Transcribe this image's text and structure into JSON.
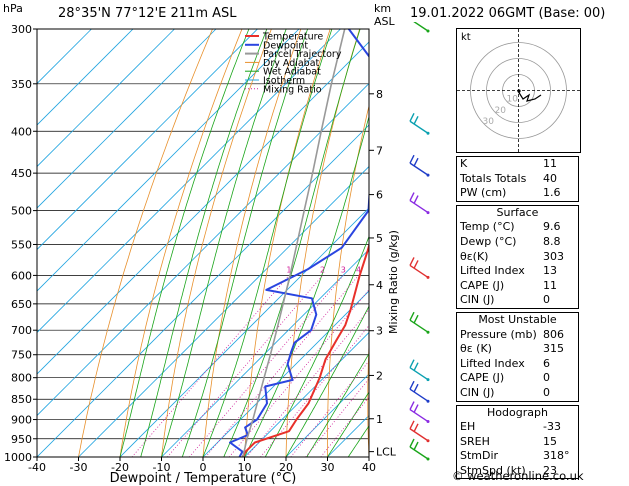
{
  "header": {
    "hpa_unit": "hPa",
    "location": "28°35'N  77°12'E  211m  ASL",
    "km_unit": "km",
    "asl_unit": "ASL",
    "datetime": "19.01.2022  06GMT  (Base: 00)"
  },
  "colors": {
    "temperature": "#e8302a",
    "dewpoint": "#2a45e0",
    "parcel": "#999999",
    "dry_adiabat": "#e8902c",
    "wet_adiabat": "#1aa51a",
    "isotherm": "#22a5e0",
    "mixing_ratio": "#d0209a"
  },
  "legend": [
    "Temperature",
    "Dewpoint",
    "Parcel Trajectory",
    "Dry Adiabat",
    "Wet Adiabat",
    "Isotherm",
    "Mixing Ratio"
  ],
  "chart_data": {
    "type": "line",
    "xlabel": "Dewpoint / Temperature (°C)",
    "ylabel": "hPa",
    "right_label": "Mixing Ratio (g/kg)",
    "xlim": [
      -40,
      40
    ],
    "ylim": [
      1000,
      300
    ],
    "x_ticks": [
      -40,
      -30,
      -20,
      -10,
      0,
      10,
      20,
      30,
      40
    ],
    "pressure_ticks": [
      300,
      350,
      400,
      450,
      500,
      550,
      600,
      650,
      700,
      750,
      800,
      850,
      900,
      950,
      1000
    ],
    "km_ticks": [
      {
        "label": "8",
        "p": 360
      },
      {
        "label": "7",
        "p": 422
      },
      {
        "label": "6",
        "p": 478
      },
      {
        "label": "5",
        "p": 540
      },
      {
        "label": "4",
        "p": 616
      },
      {
        "label": "3",
        "p": 701
      },
      {
        "label": "2",
        "p": 795
      },
      {
        "label": "1",
        "p": 898
      },
      {
        "label": "LCL",
        "p": 985
      }
    ],
    "mixing_ratio_labels": [
      "1",
      "2",
      "3",
      "4",
      "6",
      "8",
      "10",
      "16",
      "20",
      "25"
    ],
    "mixing_ratio_values": [
      1,
      2,
      3,
      4,
      6,
      8,
      10,
      16,
      20,
      25
    ],
    "series": [
      {
        "name": "Temperature",
        "points": [
          [
            1000,
            9.5
          ],
          [
            985,
            9.0
          ],
          [
            960,
            9.0
          ],
          [
            930,
            14.5
          ],
          [
            900,
            13.5
          ],
          [
            860,
            12.5
          ],
          [
            800,
            9.0
          ],
          [
            760,
            6.0
          ],
          [
            720,
            4.0
          ],
          [
            690,
            2.5
          ],
          [
            660,
            0.0
          ],
          [
            600,
            -6.0
          ],
          [
            560,
            -10.0
          ],
          [
            500,
            -17.0
          ],
          [
            450,
            -22.5
          ],
          [
            400,
            -29.5
          ],
          [
            365,
            -35.0
          ],
          [
            355,
            -38.5
          ],
          [
            340,
            -37.5
          ],
          [
            320,
            -38.0
          ],
          [
            300,
            -42.0
          ]
        ]
      },
      {
        "name": "Dewpoint",
        "points": [
          [
            1000,
            8.8
          ],
          [
            985,
            8.2
          ],
          [
            960,
            3.0
          ],
          [
            940,
            5.5
          ],
          [
            920,
            3.0
          ],
          [
            900,
            4.0
          ],
          [
            860,
            2.5
          ],
          [
            820,
            -2.0
          ],
          [
            805,
            3.0
          ],
          [
            770,
            -2.0
          ],
          [
            745,
            -4.0
          ],
          [
            725,
            -5.5
          ],
          [
            700,
            -4.5
          ],
          [
            670,
            -7.0
          ],
          [
            640,
            -12.0
          ],
          [
            625,
            -25.0
          ],
          [
            590,
            -20.0
          ],
          [
            555,
            -17.0
          ],
          [
            500,
            -19.5
          ],
          [
            450,
            -28.0
          ],
          [
            400,
            -37.0
          ],
          [
            350,
            -45.0
          ],
          [
            300,
            -68.0
          ]
        ]
      },
      {
        "name": "Parcel Trajectory",
        "points": [
          [
            1000,
            9.6
          ],
          [
            985,
            8.6
          ],
          [
            950,
            6.2
          ],
          [
            900,
            3.0
          ],
          [
            850,
            -0.6
          ],
          [
            800,
            -4.4
          ],
          [
            750,
            -8.4
          ],
          [
            700,
            -12.8
          ],
          [
            650,
            -17.6
          ],
          [
            600,
            -22.8
          ],
          [
            550,
            -28.6
          ],
          [
            500,
            -35.0
          ],
          [
            450,
            -42.0
          ],
          [
            400,
            -50.0
          ],
          [
            350,
            -59.0
          ],
          [
            300,
            -69.0
          ]
        ]
      }
    ]
  },
  "wind_barbs": {
    "colors": [
      "#1aa51a",
      "#0aa0b0",
      "#1e3cc8",
      "#8a2be2",
      "#e03030"
    ],
    "levels": [
      300,
      400,
      450,
      500,
      600,
      700,
      800,
      850,
      900,
      950,
      1000
    ]
  },
  "hodograph": {
    "label": "kt",
    "rings": [
      "10",
      "20",
      "30"
    ]
  },
  "indices": {
    "k_label": "K",
    "k_value": "11",
    "tt_label": "Totals Totals",
    "tt_value": "40",
    "pw_label": "PW (cm)",
    "pw_value": "1.6"
  },
  "surface": {
    "title": "Surface",
    "temp_label": "Temp (°C)",
    "temp_value": "9.6",
    "dewp_label": "Dewp (°C)",
    "dewp_value": "8.8",
    "theta_label": "θε(K)",
    "theta_value": "303",
    "li_label": "Lifted Index",
    "li_value": "13",
    "cape_label": "CAPE (J)",
    "cape_value": "11",
    "cin_label": "CIN (J)",
    "cin_value": "0"
  },
  "most_unstable": {
    "title": "Most Unstable",
    "pres_label": "Pressure (mb)",
    "pres_value": "806",
    "theta_label": "θε (K)",
    "theta_value": "315",
    "li_label": "Lifted Index",
    "li_value": "6",
    "cape_label": "CAPE (J)",
    "cape_value": "0",
    "cin_label": "CIN (J)",
    "cin_value": "0"
  },
  "hodograph_table": {
    "title": "Hodograph",
    "eh_label": "EH",
    "eh_value": "-33",
    "sreh_label": "SREH",
    "sreh_value": "15",
    "stmdir_label": "StmDir",
    "stmdir_value": "318°",
    "stmspd_label": "StmSpd (kt)",
    "stmspd_value": "23"
  },
  "copyright": "© weatheronline.co.uk"
}
